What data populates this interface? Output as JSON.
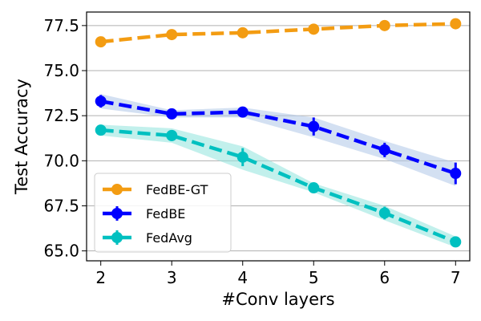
{
  "chart_data": {
    "type": "line",
    "title": "",
    "xlabel": "#Conv layers",
    "ylabel": "Test Accuracy",
    "x": [
      2,
      3,
      4,
      5,
      6,
      7
    ],
    "xlim": [
      1.8,
      7.2
    ],
    "ylim": [
      64.45,
      78.25
    ],
    "xticks": [
      2,
      3,
      4,
      5,
      6,
      7
    ],
    "yticks": [
      65.0,
      67.5,
      70.0,
      72.5,
      75.0,
      77.5
    ],
    "ytick_labels": [
      "65.0",
      "67.5",
      "70.0",
      "72.5",
      "75.0",
      "77.5"
    ],
    "grid": "horizontal",
    "legend_position": "lower-left",
    "series": [
      {
        "name": "FedBE-GT",
        "color": "#f39c12",
        "style": "dashed",
        "errorbars": false,
        "values": [
          76.6,
          77.0,
          77.1,
          77.3,
          77.5,
          77.6
        ],
        "band_low": null,
        "band_high": null
      },
      {
        "name": "FedBE",
        "color": "#0000ff",
        "band_color": "#aec7e8",
        "style": "dashed",
        "errorbars": true,
        "values": [
          73.3,
          72.6,
          72.7,
          71.9,
          70.6,
          69.3
        ],
        "err": [
          0.35,
          0.15,
          0.2,
          0.5,
          0.4,
          0.6
        ],
        "band_low": [
          72.9,
          72.4,
          72.4,
          71.3,
          70.1,
          68.6
        ],
        "band_high": [
          73.7,
          72.8,
          72.95,
          72.4,
          71.1,
          69.9
        ]
      },
      {
        "name": "FedAvg",
        "color": "#00c0c0",
        "band_color": "#8fe3dc",
        "style": "dashed",
        "errorbars": true,
        "values": [
          71.7,
          71.4,
          70.2,
          68.5,
          67.1,
          65.5
        ],
        "err": [
          0.2,
          0.3,
          0.5,
          0.2,
          0.35,
          0.25
        ],
        "band_low": [
          71.4,
          71.0,
          69.5,
          68.25,
          66.7,
          65.2
        ],
        "band_high": [
          72.0,
          71.8,
          70.8,
          68.75,
          67.5,
          65.8
        ]
      }
    ]
  }
}
